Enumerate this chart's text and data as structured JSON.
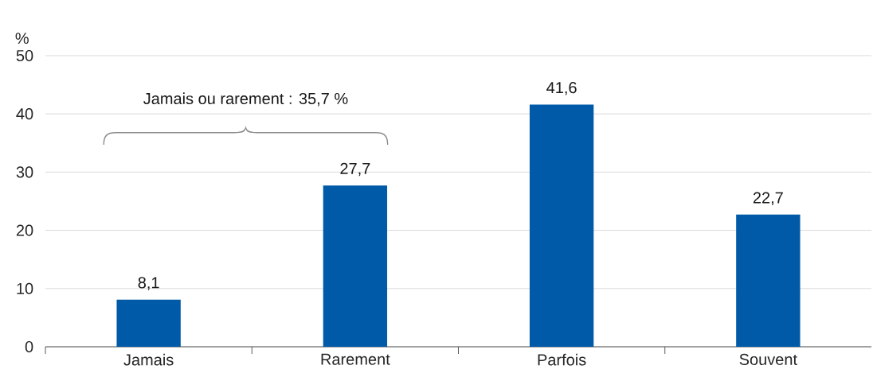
{
  "chart_data": {
    "type": "bar",
    "ylabel": "%",
    "categories": [
      "Jamais",
      "Rarement",
      "Parfois",
      "Souvent"
    ],
    "values": [
      8.1,
      27.7,
      41.6,
      22.7
    ],
    "value_labels": [
      "8,1",
      "27,7",
      "41,6",
      "22,7"
    ],
    "color": "#005aa7",
    "ylim": [
      0,
      50
    ],
    "yticks": [
      0,
      10,
      20,
      30,
      40,
      50
    ],
    "grid": "y",
    "annotations": [
      "Jamais ou rarement : 35,7 %"
    ]
  }
}
